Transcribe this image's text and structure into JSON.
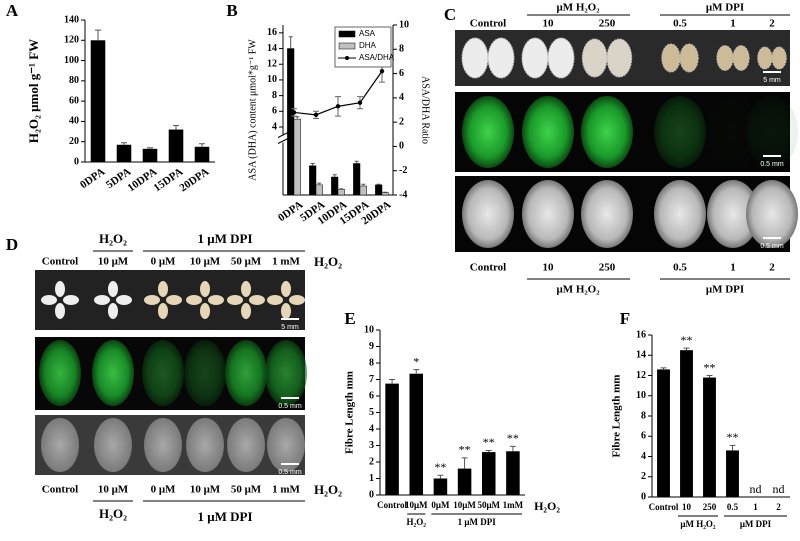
{
  "chart_data": [
    {
      "panel": "A",
      "type": "bar",
      "y_label": "H₂O₂ μmol g⁻¹ FW",
      "categories": [
        "0DPA",
        "5DPA",
        "10DPA",
        "15DPA",
        "20DPA"
      ],
      "values": [
        120,
        17,
        13,
        32,
        15
      ],
      "errors": [
        10,
        2,
        1,
        4,
        3
      ],
      "color": "#000000",
      "ylim": [
        0,
        140
      ],
      "yticks": [
        0,
        20,
        40,
        60,
        80,
        100,
        120,
        140
      ]
    },
    {
      "panel": "B",
      "type": "combo",
      "y_label": "ASA (DHA) content μmol*g⁻¹ FW",
      "y2_label": "ASA/DHA Ratio",
      "categories": [
        "0DPA",
        "5DPA",
        "10DPA",
        "15DPA",
        "20DPA"
      ],
      "series": [
        {
          "name": "ASA",
          "type": "bar",
          "color": "#000000",
          "values": [
            14,
            1.3,
            0.8,
            1.4,
            0.45
          ],
          "errors": [
            1.5,
            0.1,
            0.1,
            0.1,
            0.03
          ]
        },
        {
          "name": "DHA",
          "type": "bar",
          "color": "#c0c0c0",
          "values": [
            5,
            0.45,
            0.25,
            0.4,
            0.1
          ],
          "errors": [
            0.3,
            0.08,
            0.03,
            0.08,
            0.02
          ]
        },
        {
          "name": "ASA/DHA",
          "type": "line",
          "axis": "y2",
          "color": "#000000",
          "values": [
            2.8,
            2.6,
            3.3,
            3.6,
            6.2
          ],
          "errors": [
            0.3,
            0.3,
            0.8,
            0.5,
            0.9
          ]
        }
      ],
      "ylim": [
        0,
        17
      ],
      "y_break": [
        2,
        4
      ],
      "yticks": [
        4,
        6,
        8,
        10,
        12,
        14,
        16
      ],
      "y2lim": [
        -4,
        10
      ],
      "y2ticks": [
        -4,
        -2,
        0,
        2,
        4,
        6,
        8,
        10
      ],
      "legend": "upper right"
    },
    {
      "panel": "E",
      "type": "bar",
      "y_label": "Fibre Length mm",
      "categories": [
        "Control",
        "10μM",
        "0μM",
        "10μM",
        "50μM",
        "1mM"
      ],
      "values": [
        6.75,
        7.35,
        1.0,
        1.6,
        2.6,
        2.65
      ],
      "errors": [
        0.25,
        0.25,
        0.2,
        0.65,
        0.1,
        0.3
      ],
      "annotations": [
        null,
        "*",
        "**",
        "**",
        "**",
        "**"
      ],
      "group_labels": [
        "H₂O₂",
        "1 μM DPI"
      ],
      "trailing_label": "H₂O₂",
      "color": "#000000",
      "ylim": [
        0,
        10
      ],
      "yticks": [
        0,
        1,
        2,
        3,
        4,
        5,
        6,
        7,
        8,
        9,
        10
      ]
    },
    {
      "panel": "F",
      "type": "bar",
      "y_label": "Fibre Length mm",
      "categories": [
        "Control",
        "10",
        "250",
        "0.5",
        "1",
        "2"
      ],
      "values": [
        12.6,
        14.5,
        11.8,
        4.6,
        null,
        null
      ],
      "errors": [
        0.15,
        0.2,
        0.2,
        0.5,
        null,
        null
      ],
      "annotations": [
        null,
        "**",
        "**",
        "**",
        "nd",
        "nd"
      ],
      "group_labels": [
        "μM H₂O₂",
        "μM DPI"
      ],
      "color": "#000000",
      "ylim": [
        0,
        16
      ],
      "yticks": [
        0,
        2,
        4,
        6,
        8,
        10,
        12,
        14,
        16
      ]
    }
  ],
  "panels": {
    "C": {
      "label": "C",
      "header": {
        "control": "Control",
        "h2o2_unit": "μM H₂O₂",
        "h2o2": [
          "10",
          "250"
        ],
        "dpi_unit": "μM DPI",
        "dpi": [
          "0.5",
          "1",
          "2"
        ]
      },
      "scale_bars": [
        "5 mm",
        "0.5 mm",
        "0.5 mm"
      ],
      "footer": {
        "control": "Control",
        "h2o2": [
          "10",
          "250"
        ],
        "dpi": [
          "0.5",
          "1",
          "2"
        ],
        "h2o2_unit": "μM H₂O₂",
        "dpi_unit": "μM DPI"
      }
    },
    "D": {
      "label": "D",
      "header": {
        "h2o2_unit": "H₂O₂",
        "dpi_unit": "1 μM DPI",
        "columns": [
          "Control",
          "10 μM",
          "0 μM",
          "10 μM",
          "50 μM",
          "1 mM"
        ],
        "trailing": "H₂O₂"
      },
      "scale_bars": [
        "5 mm",
        "0.5 mm",
        "0.5 mm"
      ],
      "footer": {
        "columns": [
          "Control",
          "10 μM",
          "0 μM",
          "10 μM",
          "50 μM",
          "1 mM"
        ],
        "trailing": "H₂O₂",
        "h2o2_unit": "H₂O₂",
        "dpi_unit": "1 μM DPI"
      }
    }
  }
}
